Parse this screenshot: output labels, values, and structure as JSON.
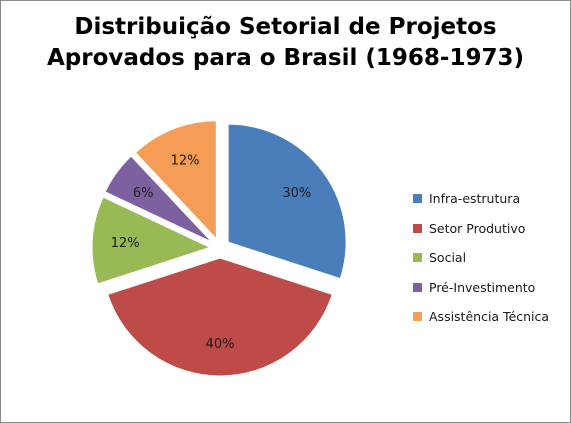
{
  "chart_data": {
    "type": "pie",
    "title_lines": [
      "Distribuição Setorial de Projetos",
      "Aprovados para o Brasil (1968-1973)"
    ],
    "slices": [
      {
        "name": "Infra-estrutura",
        "value": 30,
        "label": "30%",
        "color": "#4a7ebb",
        "exploded": true
      },
      {
        "name": "Setor Produtivo",
        "value": 40,
        "label": "40%",
        "color": "#be4b48",
        "exploded": true
      },
      {
        "name": "Social",
        "value": 12,
        "label": "12%",
        "color": "#98b954",
        "exploded": true
      },
      {
        "name": "Pré-Investimento",
        "value": 6,
        "label": "6%",
        "color": "#7d60a0",
        "exploded": true
      },
      {
        "name": "Assistência Técnica",
        "value": 12,
        "label": "12%",
        "color": "#f59d56",
        "exploded": true
      }
    ],
    "legend_position": "right"
  }
}
